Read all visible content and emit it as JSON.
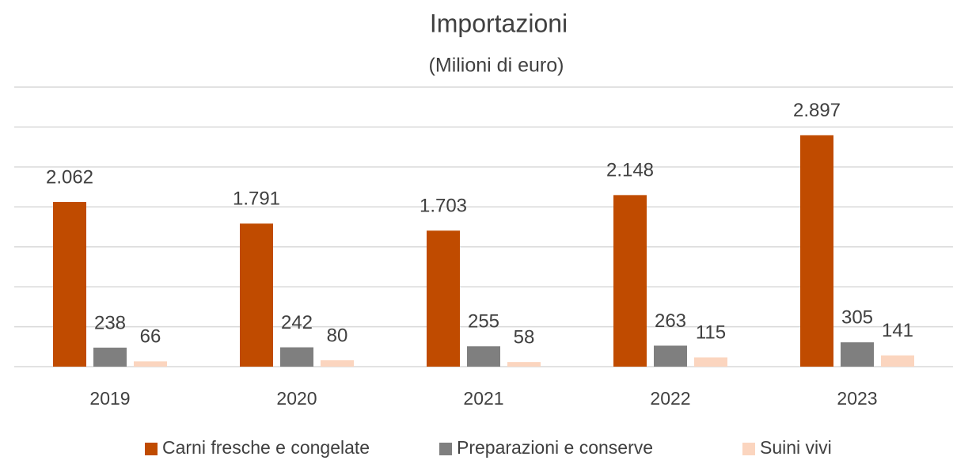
{
  "chart_data": {
    "type": "bar",
    "title": "Importazioni",
    "subtitle": "(Milioni di euro)",
    "categories": [
      "2019",
      "2020",
      "2021",
      "2022",
      "2023"
    ],
    "series": [
      {
        "name": "Carni fresche e congelate",
        "color": "#c04b00",
        "values": [
          2062,
          1791,
          1703,
          2148,
          2897
        ],
        "value_labels": [
          "2.062",
          "1.791",
          "1.703",
          "2.148",
          "2.897"
        ]
      },
      {
        "name": "Preparazioni e conserve",
        "color": "#7f7f7f",
        "values": [
          238,
          242,
          255,
          263,
          305
        ],
        "value_labels": [
          "238",
          "242",
          "255",
          "263",
          "305"
        ]
      },
      {
        "name": "Suini vivi",
        "color": "#fbd5bf",
        "values": [
          66,
          80,
          58,
          115,
          141
        ],
        "value_labels": [
          "66",
          "80",
          "58",
          "115",
          "141"
        ]
      }
    ],
    "ylim": [
      0,
      3500
    ],
    "yticks": [
      0,
      500,
      1000,
      1500,
      2000,
      2500,
      3000,
      3500
    ],
    "grid": true,
    "legend": "bottom"
  }
}
